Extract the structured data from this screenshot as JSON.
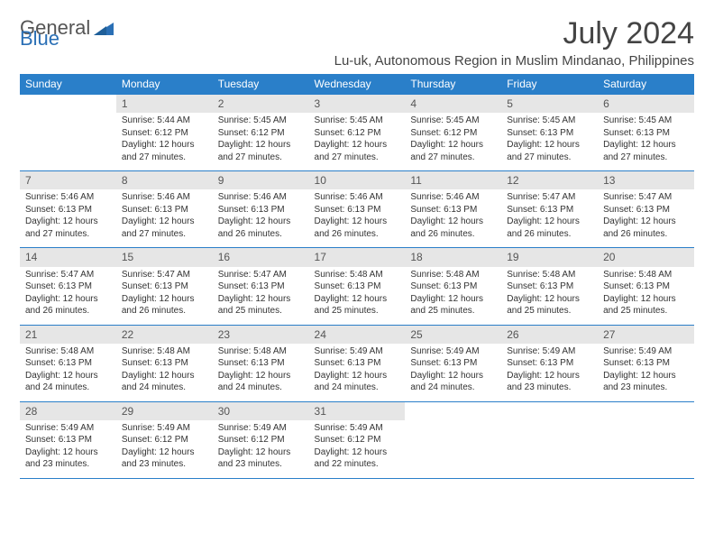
{
  "logo": {
    "part1": "General",
    "part2": "Blue"
  },
  "title": "July 2024",
  "subtitle": "Lu-uk, Autonomous Region in Muslim Mindanao, Philippines",
  "colors": {
    "header_bg": "#2a7fc9",
    "header_text": "#ffffff",
    "daynum_bg": "#e6e6e6",
    "border": "#2a7fc9",
    "text": "#333333",
    "logo_gray": "#555555",
    "logo_blue": "#2a6fb5",
    "background": "#ffffff"
  },
  "days_of_week": [
    "Sunday",
    "Monday",
    "Tuesday",
    "Wednesday",
    "Thursday",
    "Friday",
    "Saturday"
  ],
  "weeks": [
    [
      null,
      {
        "n": "1",
        "sr": "Sunrise: 5:44 AM",
        "ss": "Sunset: 6:12 PM",
        "d1": "Daylight: 12 hours",
        "d2": "and 27 minutes."
      },
      {
        "n": "2",
        "sr": "Sunrise: 5:45 AM",
        "ss": "Sunset: 6:12 PM",
        "d1": "Daylight: 12 hours",
        "d2": "and 27 minutes."
      },
      {
        "n": "3",
        "sr": "Sunrise: 5:45 AM",
        "ss": "Sunset: 6:12 PM",
        "d1": "Daylight: 12 hours",
        "d2": "and 27 minutes."
      },
      {
        "n": "4",
        "sr": "Sunrise: 5:45 AM",
        "ss": "Sunset: 6:12 PM",
        "d1": "Daylight: 12 hours",
        "d2": "and 27 minutes."
      },
      {
        "n": "5",
        "sr": "Sunrise: 5:45 AM",
        "ss": "Sunset: 6:13 PM",
        "d1": "Daylight: 12 hours",
        "d2": "and 27 minutes."
      },
      {
        "n": "6",
        "sr": "Sunrise: 5:45 AM",
        "ss": "Sunset: 6:13 PM",
        "d1": "Daylight: 12 hours",
        "d2": "and 27 minutes."
      }
    ],
    [
      {
        "n": "7",
        "sr": "Sunrise: 5:46 AM",
        "ss": "Sunset: 6:13 PM",
        "d1": "Daylight: 12 hours",
        "d2": "and 27 minutes."
      },
      {
        "n": "8",
        "sr": "Sunrise: 5:46 AM",
        "ss": "Sunset: 6:13 PM",
        "d1": "Daylight: 12 hours",
        "d2": "and 27 minutes."
      },
      {
        "n": "9",
        "sr": "Sunrise: 5:46 AM",
        "ss": "Sunset: 6:13 PM",
        "d1": "Daylight: 12 hours",
        "d2": "and 26 minutes."
      },
      {
        "n": "10",
        "sr": "Sunrise: 5:46 AM",
        "ss": "Sunset: 6:13 PM",
        "d1": "Daylight: 12 hours",
        "d2": "and 26 minutes."
      },
      {
        "n": "11",
        "sr": "Sunrise: 5:46 AM",
        "ss": "Sunset: 6:13 PM",
        "d1": "Daylight: 12 hours",
        "d2": "and 26 minutes."
      },
      {
        "n": "12",
        "sr": "Sunrise: 5:47 AM",
        "ss": "Sunset: 6:13 PM",
        "d1": "Daylight: 12 hours",
        "d2": "and 26 minutes."
      },
      {
        "n": "13",
        "sr": "Sunrise: 5:47 AM",
        "ss": "Sunset: 6:13 PM",
        "d1": "Daylight: 12 hours",
        "d2": "and 26 minutes."
      }
    ],
    [
      {
        "n": "14",
        "sr": "Sunrise: 5:47 AM",
        "ss": "Sunset: 6:13 PM",
        "d1": "Daylight: 12 hours",
        "d2": "and 26 minutes."
      },
      {
        "n": "15",
        "sr": "Sunrise: 5:47 AM",
        "ss": "Sunset: 6:13 PM",
        "d1": "Daylight: 12 hours",
        "d2": "and 26 minutes."
      },
      {
        "n": "16",
        "sr": "Sunrise: 5:47 AM",
        "ss": "Sunset: 6:13 PM",
        "d1": "Daylight: 12 hours",
        "d2": "and 25 minutes."
      },
      {
        "n": "17",
        "sr": "Sunrise: 5:48 AM",
        "ss": "Sunset: 6:13 PM",
        "d1": "Daylight: 12 hours",
        "d2": "and 25 minutes."
      },
      {
        "n": "18",
        "sr": "Sunrise: 5:48 AM",
        "ss": "Sunset: 6:13 PM",
        "d1": "Daylight: 12 hours",
        "d2": "and 25 minutes."
      },
      {
        "n": "19",
        "sr": "Sunrise: 5:48 AM",
        "ss": "Sunset: 6:13 PM",
        "d1": "Daylight: 12 hours",
        "d2": "and 25 minutes."
      },
      {
        "n": "20",
        "sr": "Sunrise: 5:48 AM",
        "ss": "Sunset: 6:13 PM",
        "d1": "Daylight: 12 hours",
        "d2": "and 25 minutes."
      }
    ],
    [
      {
        "n": "21",
        "sr": "Sunrise: 5:48 AM",
        "ss": "Sunset: 6:13 PM",
        "d1": "Daylight: 12 hours",
        "d2": "and 24 minutes."
      },
      {
        "n": "22",
        "sr": "Sunrise: 5:48 AM",
        "ss": "Sunset: 6:13 PM",
        "d1": "Daylight: 12 hours",
        "d2": "and 24 minutes."
      },
      {
        "n": "23",
        "sr": "Sunrise: 5:48 AM",
        "ss": "Sunset: 6:13 PM",
        "d1": "Daylight: 12 hours",
        "d2": "and 24 minutes."
      },
      {
        "n": "24",
        "sr": "Sunrise: 5:49 AM",
        "ss": "Sunset: 6:13 PM",
        "d1": "Daylight: 12 hours",
        "d2": "and 24 minutes."
      },
      {
        "n": "25",
        "sr": "Sunrise: 5:49 AM",
        "ss": "Sunset: 6:13 PM",
        "d1": "Daylight: 12 hours",
        "d2": "and 24 minutes."
      },
      {
        "n": "26",
        "sr": "Sunrise: 5:49 AM",
        "ss": "Sunset: 6:13 PM",
        "d1": "Daylight: 12 hours",
        "d2": "and 23 minutes."
      },
      {
        "n": "27",
        "sr": "Sunrise: 5:49 AM",
        "ss": "Sunset: 6:13 PM",
        "d1": "Daylight: 12 hours",
        "d2": "and 23 minutes."
      }
    ],
    [
      {
        "n": "28",
        "sr": "Sunrise: 5:49 AM",
        "ss": "Sunset: 6:13 PM",
        "d1": "Daylight: 12 hours",
        "d2": "and 23 minutes."
      },
      {
        "n": "29",
        "sr": "Sunrise: 5:49 AM",
        "ss": "Sunset: 6:12 PM",
        "d1": "Daylight: 12 hours",
        "d2": "and 23 minutes."
      },
      {
        "n": "30",
        "sr": "Sunrise: 5:49 AM",
        "ss": "Sunset: 6:12 PM",
        "d1": "Daylight: 12 hours",
        "d2": "and 23 minutes."
      },
      {
        "n": "31",
        "sr": "Sunrise: 5:49 AM",
        "ss": "Sunset: 6:12 PM",
        "d1": "Daylight: 12 hours",
        "d2": "and 22 minutes."
      },
      null,
      null,
      null
    ]
  ]
}
